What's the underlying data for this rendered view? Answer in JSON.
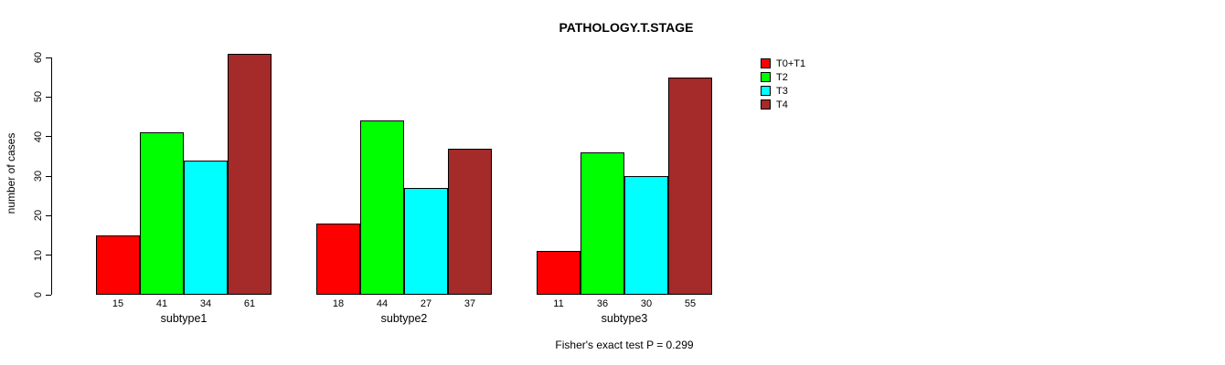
{
  "title": "PATHOLOGY.T.STAGE",
  "ylabel": "number of cases",
  "footer": "Fisher's exact test P = 0.299",
  "chart_data": {
    "type": "bar",
    "title": "PATHOLOGY.T.STAGE",
    "xlabel": "",
    "ylabel": "number of cases",
    "categories": [
      "subtype1",
      "subtype2",
      "subtype3"
    ],
    "series": [
      {
        "name": "T0+T1",
        "color": "#FF0000",
        "values": [
          15,
          18,
          11
        ]
      },
      {
        "name": "T2",
        "color": "#00FF00",
        "values": [
          41,
          44,
          36
        ]
      },
      {
        "name": "T3",
        "color": "#00FFFF",
        "values": [
          34,
          27,
          30
        ]
      },
      {
        "name": "T4",
        "color": "#A52A2A",
        "values": [
          61,
          37,
          55
        ]
      }
    ],
    "bar_value_labels": [
      [
        15,
        41,
        34,
        61
      ],
      [
        18,
        44,
        27,
        37
      ],
      [
        11,
        36,
        30,
        55
      ]
    ],
    "ylim": [
      0,
      60
    ],
    "yticks": [
      0,
      10,
      20,
      30,
      40,
      50,
      60
    ],
    "grid": false,
    "legend_position": "top-right",
    "legend_border": false,
    "annotation": "Fisher's exact test P = 0.299"
  }
}
